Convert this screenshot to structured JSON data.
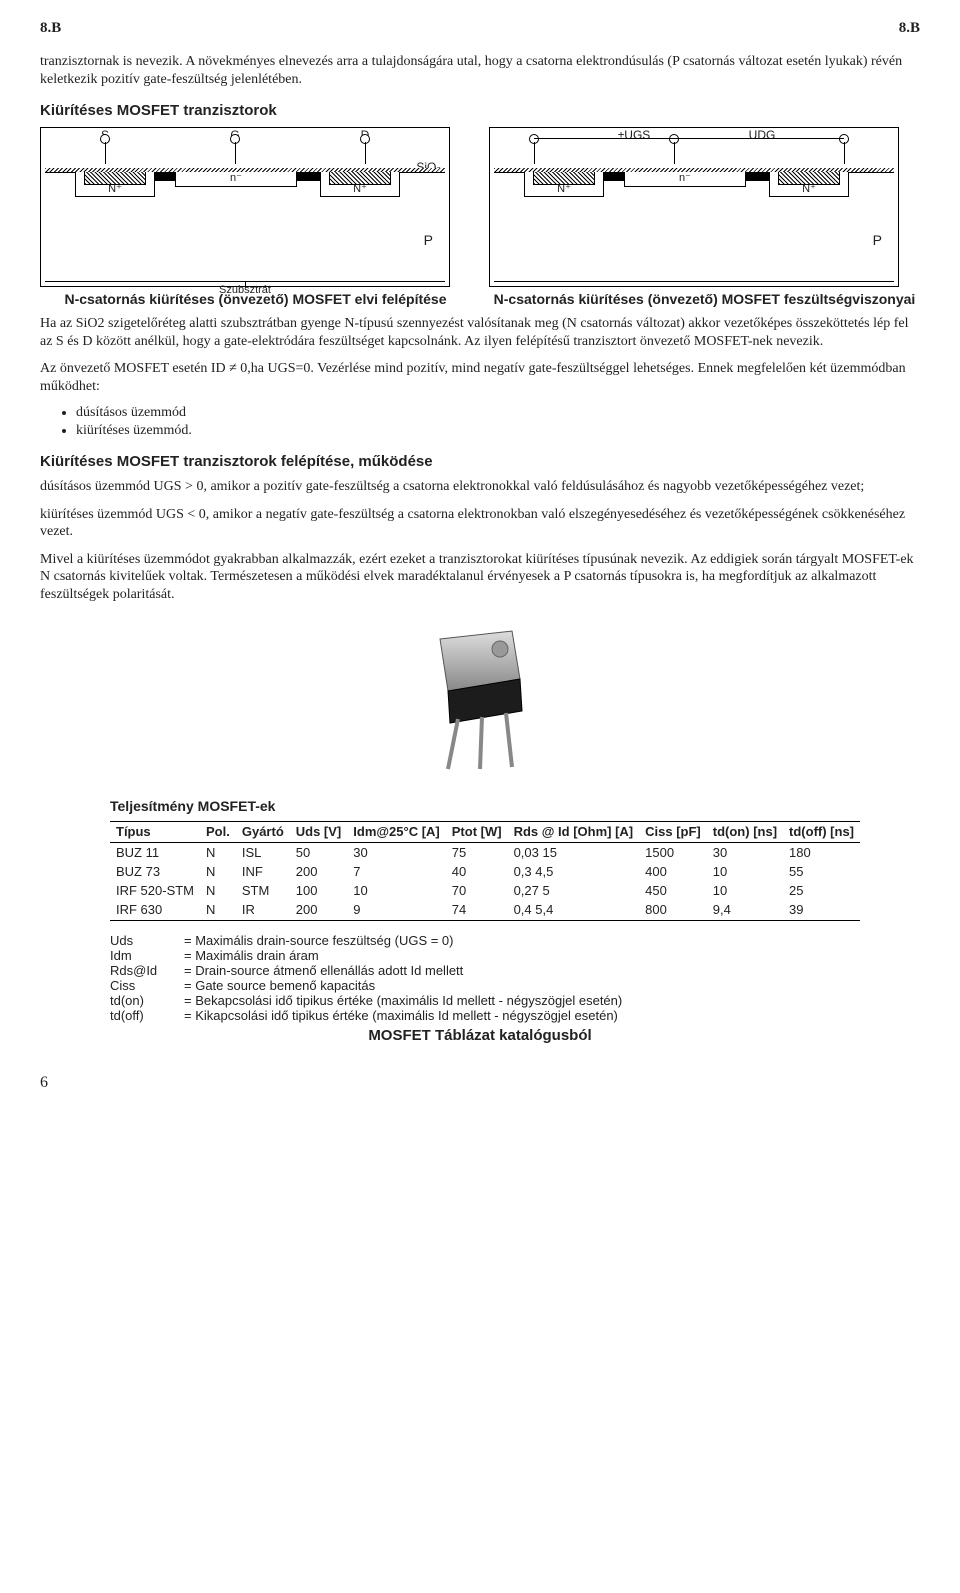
{
  "header": {
    "left": "8.B",
    "right": "8.B"
  },
  "intro": "tranzisztornak is nevezik. A növekményes elnevezés arra a tulajdonságára utal, hogy a csatorna elektrondúsulás (P csatornás változat esetén lyukak) révén keletkezik pozitív gate-feszültség jelenlétében.",
  "sec1_title": "Kiürítéses MOSFET tranzisztorok",
  "diag1": {
    "leads": {
      "S": "S",
      "G": "G",
      "D": "D"
    },
    "oxide": "SiO₂",
    "nplus": "N⁺",
    "nminus": "n⁻",
    "sub": "P",
    "substrate_label": "Szubsztrát",
    "caption": "N-csatornás kiürítéses (önvezető) MOSFET elvi felépítése"
  },
  "diag2": {
    "leads": {
      "UGS": "±UGS",
      "UDG": "UDG"
    },
    "nplus": "N⁺",
    "nminus": "n⁻",
    "sub": "P",
    "caption": "N-csatornás kiürítéses (önvezető) MOSFET feszültségviszonyai"
  },
  "para2": "Ha az SiO2 szigetelőréteg alatti szubsztrátban gyenge N-típusú szennyezést valósítanak meg (N csatornás változat) akkor vezetőképes összeköttetés lép fel az S és D között anélkül, hogy a gate-elektródára feszültséget kapcsolnánk. Az ilyen felépítésű tranzisztort önvezető MOSFET-nek nevezik.",
  "para3": "Az önvezető MOSFET esetén ID ≠ 0,ha UGS=0. Vezérlése mind pozitív, mind negatív gate-feszültséggel lehetséges. Ennek megfelelően két üzemmódban működhet:",
  "bullets": [
    "dúsításos üzemmód",
    "kiürítéses üzemmód."
  ],
  "sec2_title": "Kiürítéses MOSFET tranzisztorok felépítése, működése",
  "para4": "dúsításos üzemmód UGS > 0, amikor a pozitív gate-feszültség a csatorna elektronokkal való feldúsulásához és nagyobb vezetőképességéhez vezet;",
  "para5": "kiürítéses üzemmód  UGS < 0, amikor a negatív gate-feszültség a csatorna elektronokban való elszegényesedéséhez és vezetőképességének csökkenéséhez vezet.",
  "para6": "Mivel a kiürítéses üzemmódot gyakrabban alkalmazzák, ezért ezeket a tranzisztorokat kiürítéses típusúnak nevezik. Az eddigiek során tárgyalt MOSFET-ek N csatornás kivitelűek voltak. Természetesen a működési elvek maradéktalanul érvényesek a P csatornás típusokra is, ha megfordítjuk az alkalmazott feszültségek polaritását.",
  "table": {
    "title": "Teljesítmény MOSFET-ek",
    "columns": [
      "Típus",
      "Pol.",
      "Gyártó",
      "Uds [V]",
      "Idm@25°C [A]",
      "Ptot [W]",
      "Rds @ Id [Ohm]   [A]",
      "Ciss [pF]",
      "td(on) [ns]",
      "td(off) [ns]"
    ],
    "rows": [
      [
        "BUZ 11",
        "N",
        "ISL",
        "50",
        "30",
        "75",
        "0,03   15",
        "1500",
        "30",
        "180"
      ],
      [
        "BUZ 73",
        "N",
        "INF",
        "200",
        "7",
        "40",
        "0,3   4,5",
        "400",
        "10",
        "55"
      ],
      [
        "IRF 520-STM",
        "N",
        "STM",
        "100",
        "10",
        "70",
        "0,27   5",
        "450",
        "10",
        "25"
      ],
      [
        "IRF 630",
        "N",
        "IR",
        "200",
        "9",
        "74",
        "0,4   5,4",
        "800",
        "9,4",
        "39"
      ]
    ],
    "legend": [
      [
        "Uds",
        "= Maximális drain-source feszültség (UGS = 0)"
      ],
      [
        "Idm",
        "= Maximális drain áram"
      ],
      [
        "Rds@Id",
        "= Drain-source átmenő ellenállás adott Id mellett"
      ],
      [
        "Ciss",
        "= Gate source bemenő kapacitás"
      ],
      [
        "td(on)",
        "= Bekapcsolási idő tipikus értéke (maximális Id mellett - négyszögjel esetén)"
      ],
      [
        "td(off)",
        "= Kikapcsolási idő tipikus értéke (maximális Id mellett - négyszögjel esetén)"
      ]
    ],
    "caption": "MOSFET Táblázat katalógusból"
  },
  "pageno": "6"
}
